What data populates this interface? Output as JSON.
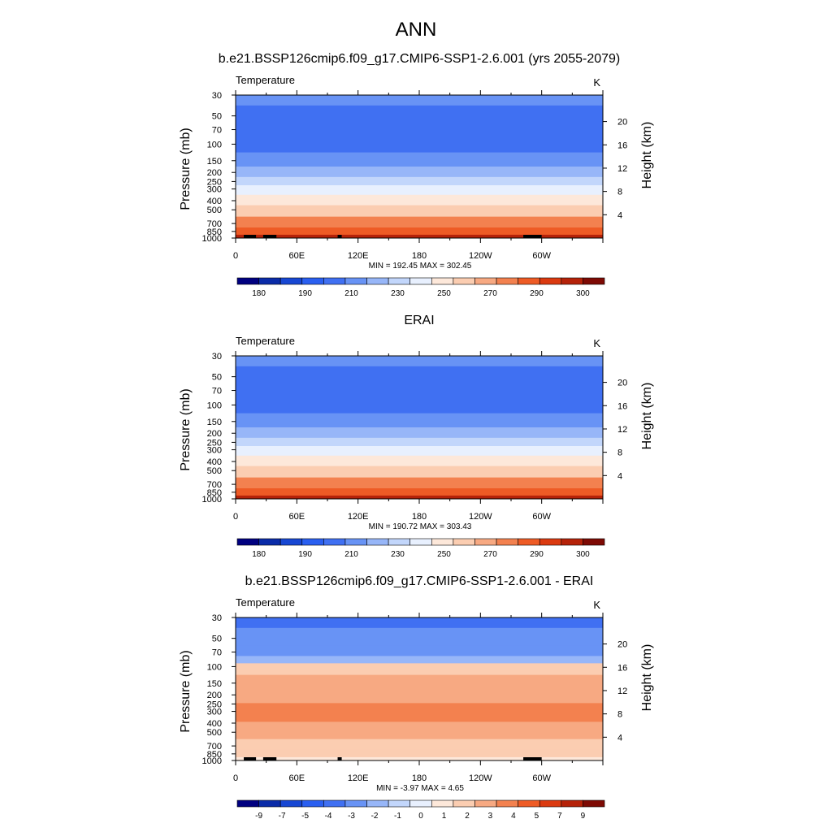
{
  "page": {
    "title": "ANN"
  },
  "chart_data": [
    {
      "type": "heatmap",
      "title": "b.e21.BSSP126cmip6.f09_g17.CMIP6-SSP1-2.6.001 (yrs 2055-2079)",
      "left_label": "Temperature",
      "right_label": "K",
      "ylabel": "Pressure (mb)",
      "ylabel_right": "Height (km)",
      "x_ticks": [
        "0",
        "60E",
        "120E",
        "180",
        "120W",
        "60W"
      ],
      "y_ticks": [
        "30",
        "50",
        "70",
        "100",
        "150",
        "200",
        "250",
        "300",
        "400",
        "500",
        "700",
        "850",
        "1000"
      ],
      "y_ticks_right": [
        "20",
        "16",
        "12",
        "8",
        "4"
      ],
      "ylim": [
        1000,
        30
      ],
      "stats": "MIN = 192.45  MAX = 302.45",
      "colorbar": {
        "labels": [
          "180",
          "190",
          "210",
          "230",
          "250",
          "270",
          "290",
          "300"
        ],
        "colors": [
          "#000080",
          "#0a2ba8",
          "#1747d3",
          "#2a5ff0",
          "#4070f2",
          "#6893f5",
          "#97b6f8",
          "#c2d6fb",
          "#e8f0fe",
          "#fde8da",
          "#fbcdb1",
          "#f7a982",
          "#f3814f",
          "#ee5b25",
          "#db3a10",
          "#b52209",
          "#7e0a04"
        ]
      },
      "layers": [
        {
          "p": 30,
          "t": 212
        },
        {
          "p": 50,
          "t": 206
        },
        {
          "p": 70,
          "t": 203
        },
        {
          "p": 100,
          "t": 204
        },
        {
          "p": 150,
          "t": 210
        },
        {
          "p": 200,
          "t": 218
        },
        {
          "p": 250,
          "t": 228
        },
        {
          "p": 300,
          "t": 236
        },
        {
          "p": 400,
          "t": 250
        },
        {
          "p": 500,
          "t": 262
        },
        {
          "p": 700,
          "t": 278
        },
        {
          "p": 850,
          "t": 288
        },
        {
          "p": 1000,
          "t": 298
        }
      ],
      "topography_lon": [
        [
          8,
          20
        ],
        [
          27,
          40
        ],
        [
          100,
          104
        ],
        [
          282,
          300
        ]
      ]
    },
    {
      "type": "heatmap",
      "title": "ERAI",
      "left_label": "Temperature",
      "right_label": "K",
      "ylabel": "Pressure (mb)",
      "ylabel_right": "Height (km)",
      "x_ticks": [
        "0",
        "60E",
        "120E",
        "180",
        "120W",
        "60W"
      ],
      "y_ticks": [
        "30",
        "50",
        "70",
        "100",
        "150",
        "200",
        "250",
        "300",
        "400",
        "500",
        "700",
        "850",
        "1000"
      ],
      "y_ticks_right": [
        "20",
        "16",
        "12",
        "8",
        "4"
      ],
      "ylim": [
        1000,
        30
      ],
      "stats": "MIN = 190.72  MAX = 303.43",
      "colorbar": {
        "labels": [
          "180",
          "190",
          "210",
          "230",
          "250",
          "270",
          "290",
          "300"
        ],
        "colors": [
          "#000080",
          "#0a2ba8",
          "#1747d3",
          "#2a5ff0",
          "#4070f2",
          "#6893f5",
          "#97b6f8",
          "#c2d6fb",
          "#e8f0fe",
          "#fde8da",
          "#fbcdb1",
          "#f7a982",
          "#f3814f",
          "#ee5b25",
          "#db3a10",
          "#b52209",
          "#7e0a04"
        ]
      },
      "layers": [
        {
          "p": 30,
          "t": 212
        },
        {
          "p": 50,
          "t": 206
        },
        {
          "p": 70,
          "t": 203
        },
        {
          "p": 100,
          "t": 204
        },
        {
          "p": 150,
          "t": 210
        },
        {
          "p": 200,
          "t": 218
        },
        {
          "p": 250,
          "t": 228
        },
        {
          "p": 300,
          "t": 236
        },
        {
          "p": 400,
          "t": 250
        },
        {
          "p": 500,
          "t": 262
        },
        {
          "p": 700,
          "t": 278
        },
        {
          "p": 850,
          "t": 288
        },
        {
          "p": 1000,
          "t": 298
        }
      ],
      "topography_lon": []
    },
    {
      "type": "heatmap",
      "title": "b.e21.BSSP126cmip6.f09_g17.CMIP6-SSP1-2.6.001 - ERAI",
      "left_label": "Temperature",
      "right_label": "K",
      "ylabel": "Pressure (mb)",
      "ylabel_right": "Height (km)",
      "x_ticks": [
        "0",
        "60E",
        "120E",
        "180",
        "120W",
        "60W"
      ],
      "y_ticks": [
        "30",
        "50",
        "70",
        "100",
        "150",
        "200",
        "250",
        "300",
        "400",
        "500",
        "700",
        "850",
        "1000"
      ],
      "y_ticks_right": [
        "20",
        "16",
        "12",
        "8",
        "4"
      ],
      "ylim": [
        1000,
        30
      ],
      "stats": "MIN = -3.97  MAX =  4.65",
      "colorbar": {
        "labels": [
          "-9",
          "-7",
          "-5",
          "-4",
          "-3",
          "-2",
          "-1",
          "0",
          "1",
          "2",
          "3",
          "4",
          "5",
          "7",
          "9"
        ],
        "colors": [
          "#000080",
          "#0a2ba8",
          "#1747d3",
          "#2a5ff0",
          "#4070f2",
          "#6893f5",
          "#97b6f8",
          "#c2d6fb",
          "#e8f0fe",
          "#fde8da",
          "#fbcdb1",
          "#f7a982",
          "#f3814f",
          "#ee5b25",
          "#db3a10",
          "#b52209",
          "#7e0a04"
        ]
      },
      "layers": [
        {
          "p": 30,
          "t": -3.5
        },
        {
          "p": 50,
          "t": -3.2
        },
        {
          "p": 70,
          "t": -3.0
        },
        {
          "p": 85,
          "t": -1.5
        },
        {
          "p": 100,
          "t": 1.5
        },
        {
          "p": 150,
          "t": 2.5
        },
        {
          "p": 200,
          "t": 3.0
        },
        {
          "p": 300,
          "t": 3.3
        },
        {
          "p": 500,
          "t": 3.1
        },
        {
          "p": 700,
          "t": 2.2
        },
        {
          "p": 850,
          "t": 1.5
        },
        {
          "p": 1000,
          "t": 1.2
        }
      ],
      "topography_lon": [
        [
          8,
          20
        ],
        [
          27,
          40
        ],
        [
          100,
          104
        ],
        [
          282,
          300
        ]
      ]
    }
  ]
}
